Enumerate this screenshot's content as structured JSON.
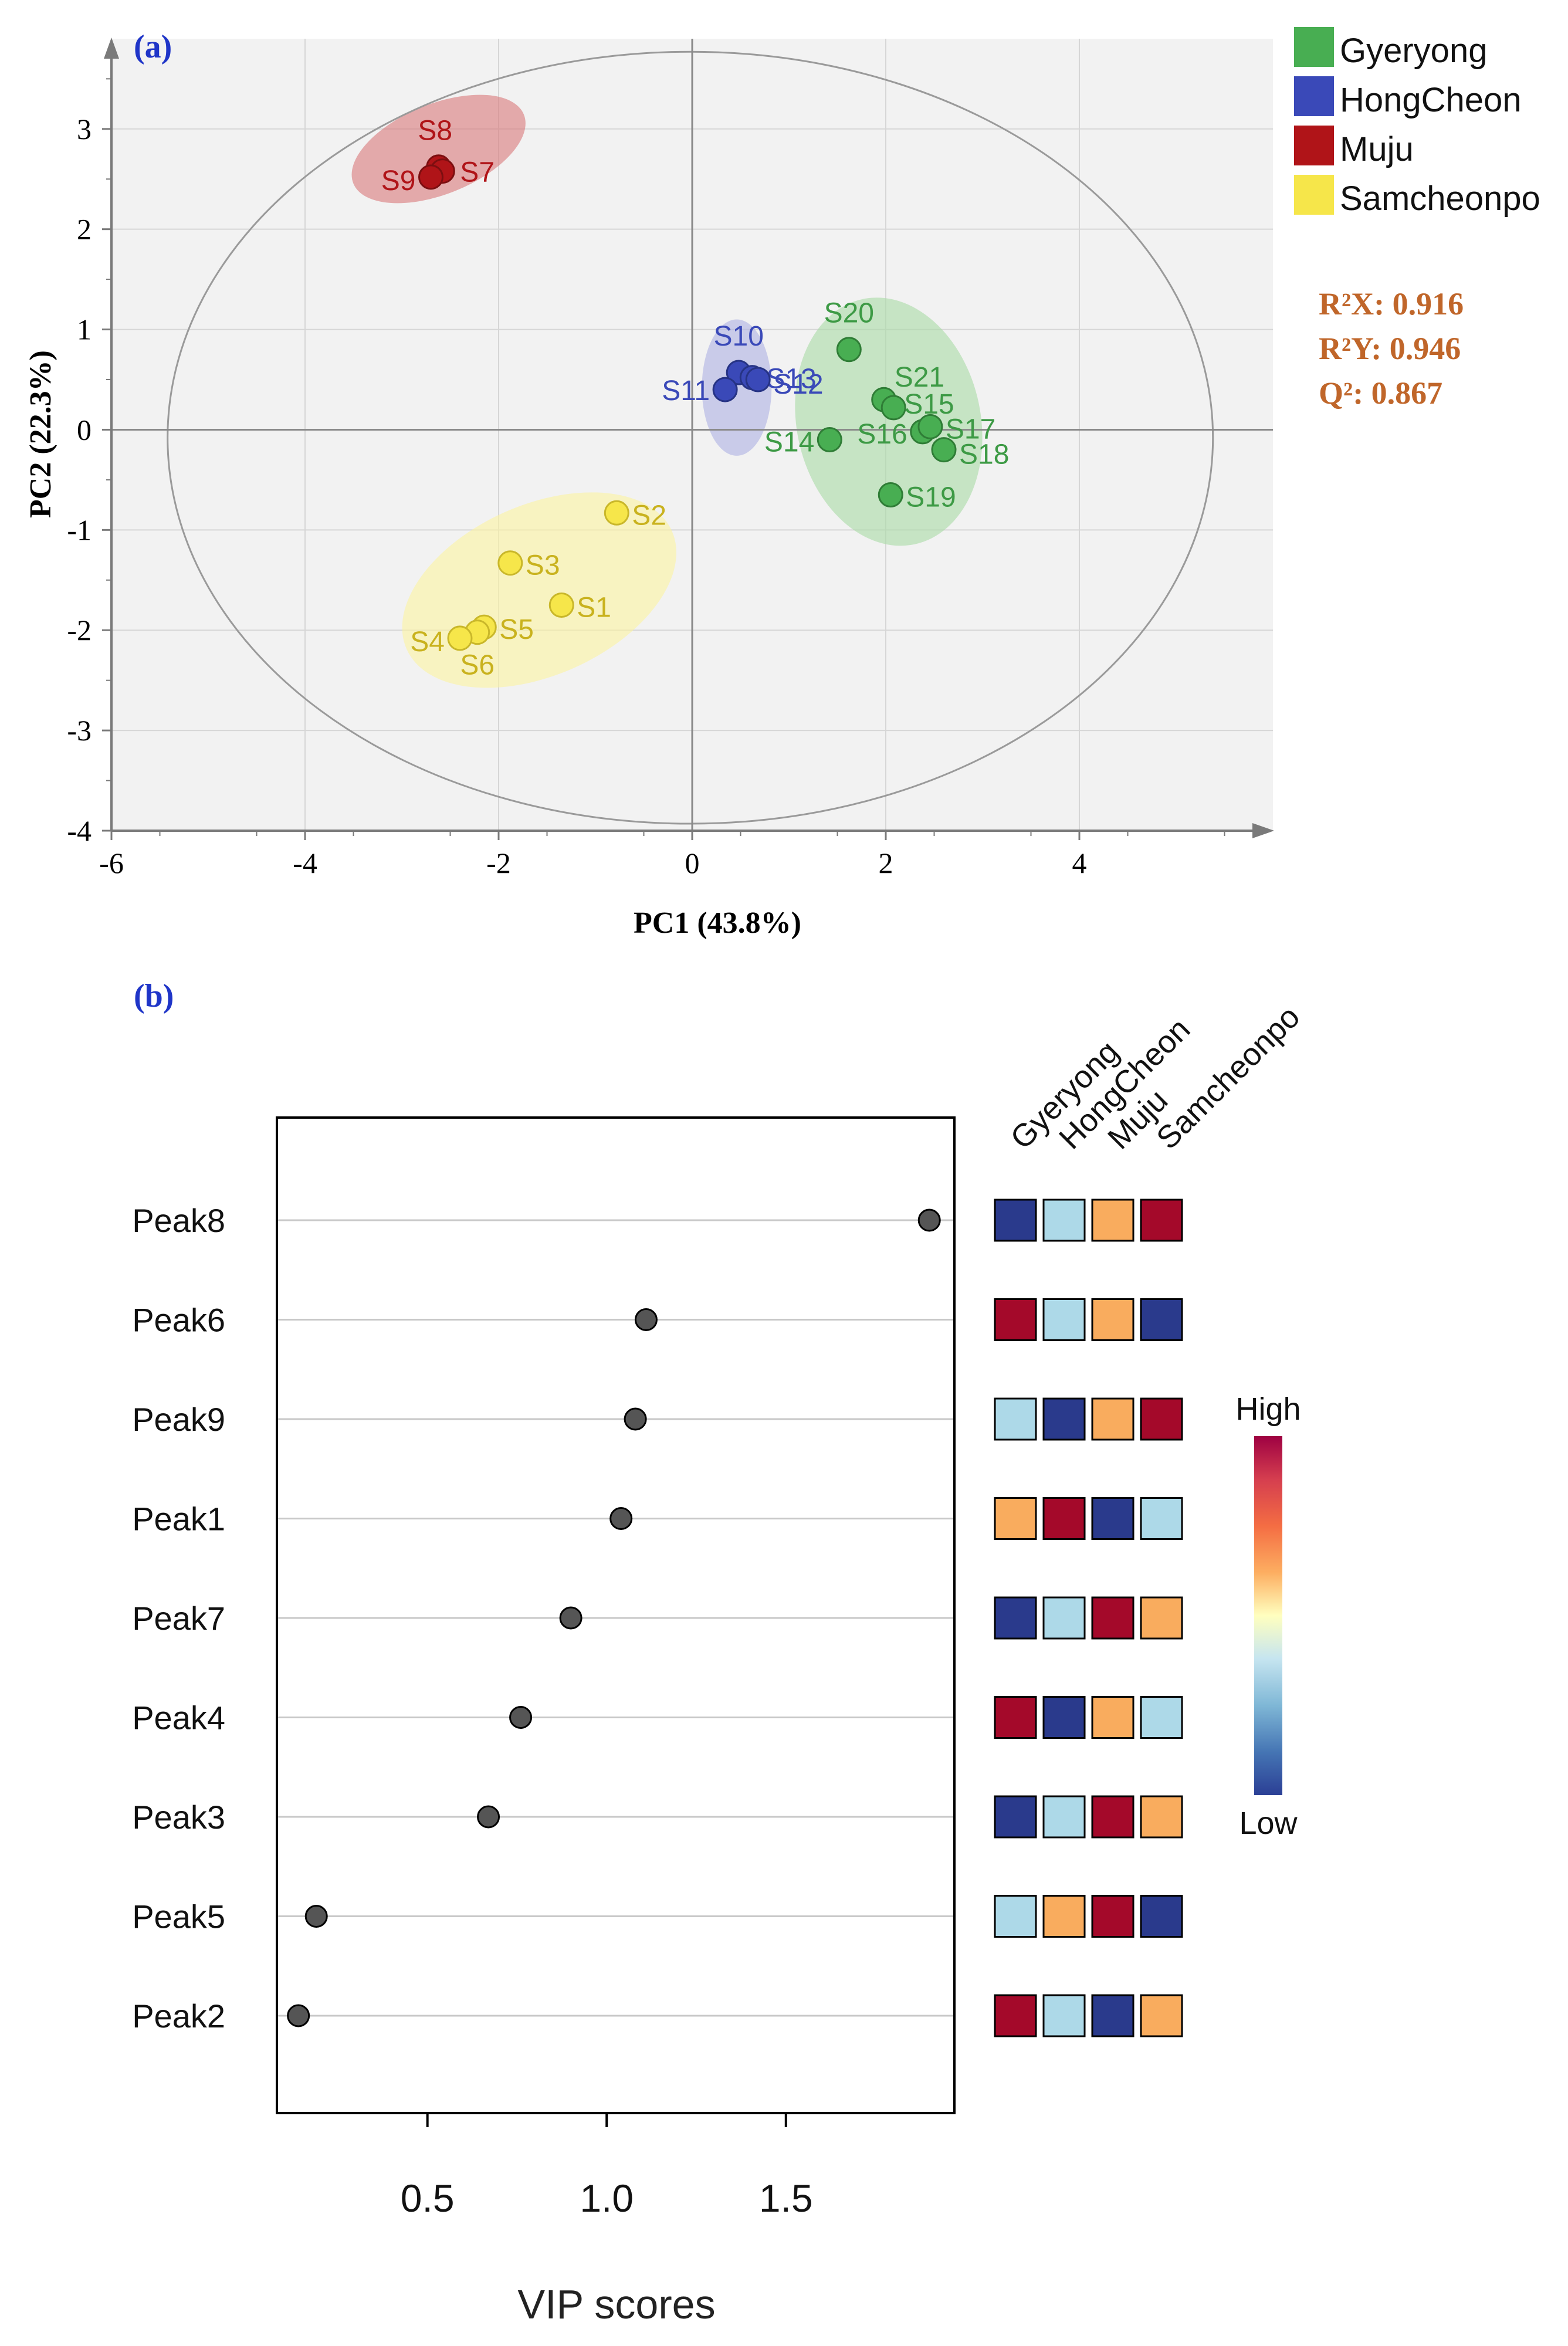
{
  "panel_a": {
    "label": "(a)",
    "stats": [
      "R²X: 0.916",
      "R²Y: 0.946",
      "Q²: 0.867"
    ],
    "stats_color": "#c0662a",
    "chart_data": {
      "type": "scatter",
      "xlabel": "PC1 (43.8%)",
      "ylabel": "PC2 (22.3%)",
      "xlim": [
        -6,
        6
      ],
      "ylim": [
        -4,
        3.9
      ],
      "xticks": [
        -6,
        -4,
        -2,
        0,
        2,
        4
      ],
      "xtick_labels": [
        "-6",
        "-4",
        "-2",
        "0",
        "2",
        "4"
      ],
      "yticks": [
        -4,
        -3,
        -2,
        -1,
        0,
        1,
        2,
        3
      ],
      "ytick_labels": [
        "-4",
        "-3",
        "-2",
        "-1",
        "0",
        "1",
        "2",
        "3"
      ],
      "grid": true,
      "legend_position": "right",
      "series": [
        {
          "name": "Gyeryong",
          "color": "#48ae52",
          "points": [
            {
              "label": "S20",
              "x": 1.62,
              "y": 0.8
            },
            {
              "label": "S21",
              "x": 1.98,
              "y": 0.3
            },
            {
              "label": "S15",
              "x": 2.08,
              "y": 0.22
            },
            {
              "label": "S14",
              "x": 1.42,
              "y": -0.1
            },
            {
              "label": "S16",
              "x": 2.38,
              "y": -0.02
            },
            {
              "label": "S17",
              "x": 2.46,
              "y": 0.03
            },
            {
              "label": "S18",
              "x": 2.6,
              "y": -0.2
            },
            {
              "label": "S19",
              "x": 2.05,
              "y": -0.65
            }
          ]
        },
        {
          "name": "HongCheon",
          "color": "#3a49b8",
          "points": [
            {
              "label": "S10",
              "x": 0.48,
              "y": 0.57
            },
            {
              "label": "S11",
              "x": 0.34,
              "y": 0.4
            },
            {
              "label": "S13",
              "x": 0.62,
              "y": 0.52
            },
            {
              "label": "S12",
              "x": 0.68,
              "y": 0.5
            }
          ]
        },
        {
          "name": "Muju",
          "color": "#b01418",
          "points": [
            {
              "label": "S8",
              "x": -2.62,
              "y": 2.62
            },
            {
              "label": "S7",
              "x": -2.58,
              "y": 2.58
            },
            {
              "label": "S9",
              "x": -2.7,
              "y": 2.52
            }
          ]
        },
        {
          "name": "Samcheonpo",
          "color": "#f6e64a",
          "points": [
            {
              "label": "S2",
              "x": -0.78,
              "y": -0.83
            },
            {
              "label": "S3",
              "x": -1.88,
              "y": -1.33
            },
            {
              "label": "S1",
              "x": -1.35,
              "y": -1.75
            },
            {
              "label": "S5",
              "x": -2.15,
              "y": -1.97
            },
            {
              "label": "S6",
              "x": -2.22,
              "y": -2.02
            },
            {
              "label": "S4",
              "x": -2.4,
              "y": -2.08
            }
          ]
        }
      ],
      "ellipses": [
        {
          "group": "Muju",
          "cx": -2.62,
          "cy": 2.8,
          "rx": 0.95,
          "ry": 0.45,
          "angle": -22,
          "fill": "#d9787a"
        },
        {
          "group": "HongCheon",
          "cx": 0.46,
          "cy": 0.42,
          "rx": 0.36,
          "ry": 0.68,
          "angle": 0,
          "fill": "#aeb0e2"
        },
        {
          "group": "Gyeryong",
          "cx": 2.03,
          "cy": 0.08,
          "rx": 0.95,
          "ry": 1.25,
          "angle": -12,
          "fill": "#a9dba5"
        },
        {
          "group": "Samcheonpo",
          "cx": -1.58,
          "cy": -1.6,
          "rx": 1.5,
          "ry": 0.85,
          "angle": -24,
          "fill": "#fbf4a0"
        },
        {
          "group": "Hotelling T2",
          "cx": -0.02,
          "cy": -0.08,
          "rx": 5.4,
          "ry": 3.85,
          "angle": 0,
          "fill": "none"
        }
      ]
    }
  },
  "panel_b": {
    "label": "(b)",
    "chart_data": {
      "type": "scatter",
      "xlabel": "VIP scores",
      "xlim": [
        0.08,
        1.97
      ],
      "xticks": [
        0.5,
        1.0,
        1.5
      ],
      "xtick_labels": [
        "0.5",
        "1.0",
        "1.5"
      ],
      "categories": [
        "Peak8",
        "Peak6",
        "Peak9",
        "Peak1",
        "Peak7",
        "Peak4",
        "Peak3",
        "Peak5",
        "Peak2"
      ],
      "values": [
        1.9,
        1.11,
        1.08,
        1.04,
        0.9,
        0.76,
        0.67,
        0.19,
        0.14
      ],
      "heatmap": {
        "columns": [
          "Gyeryong",
          "HongCheon",
          "Muju",
          "Samcheonpo"
        ],
        "levels": [
          [
            "low",
            "mid-low",
            "mid-high",
            "high"
          ],
          [
            "high",
            "mid-low",
            "mid-high",
            "low"
          ],
          [
            "mid-low",
            "low",
            "mid-high",
            "high"
          ],
          [
            "mid-high",
            "high",
            "low",
            "mid-low"
          ],
          [
            "low",
            "mid-low",
            "high",
            "mid-high"
          ],
          [
            "high",
            "low",
            "mid-high",
            "mid-low"
          ],
          [
            "low",
            "mid-low",
            "high",
            "mid-high"
          ],
          [
            "mid-low",
            "mid-high",
            "high",
            "low"
          ],
          [
            "high",
            "mid-low",
            "low",
            "mid-high"
          ]
        ],
        "colors": {
          "low": "#2a3a8c",
          "mid-low": "#add9e8",
          "mid-high": "#f9ac5e",
          "high": "#a4092a"
        },
        "colorbar_high": "High",
        "colorbar_low": "Low"
      }
    }
  }
}
